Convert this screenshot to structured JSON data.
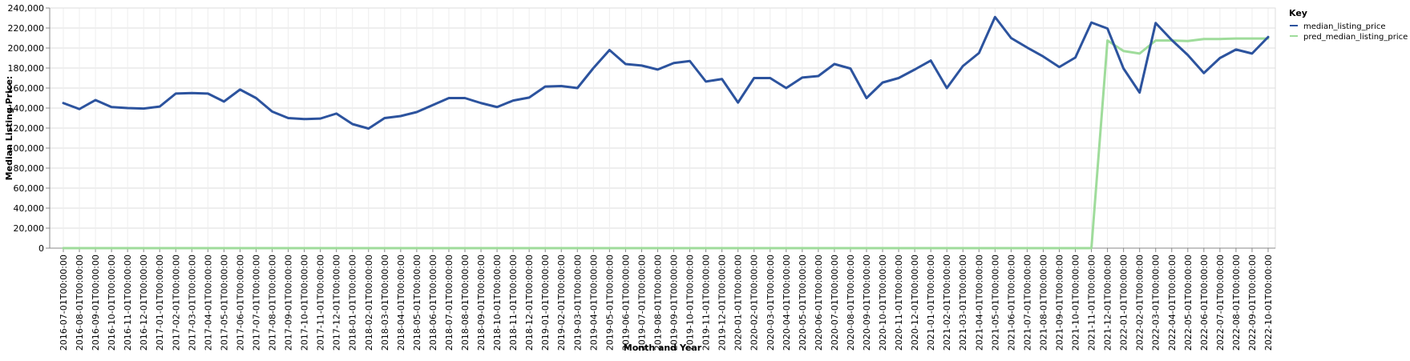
{
  "chart_data": {
    "type": "line",
    "xlabel": "Month and Year",
    "ylabel": "Median Listing Price:",
    "ylim": [
      0,
      240000
    ],
    "y_ticks": [
      0,
      20000,
      40000,
      60000,
      80000,
      100000,
      120000,
      140000,
      160000,
      180000,
      200000,
      220000,
      240000
    ],
    "y_tick_labels": [
      "0",
      "20,000",
      "40,000",
      "60,000",
      "80,000",
      "100,000",
      "120,000",
      "140,000",
      "160,000",
      "180,000",
      "200,000",
      "220,000",
      "240,000"
    ],
    "grid": true,
    "legend": {
      "title": "Key",
      "placement": "top-right"
    },
    "categories": [
      "2016-07-01T00:00:00",
      "2016-08-01T00:00:00",
      "2016-09-01T00:00:00",
      "2016-10-01T00:00:00",
      "2016-11-01T00:00:00",
      "2016-12-01T00:00:00",
      "2017-01-01T00:00:00",
      "2017-02-01T00:00:00",
      "2017-03-01T00:00:00",
      "2017-04-01T00:00:00",
      "2017-05-01T00:00:00",
      "2017-06-01T00:00:00",
      "2017-07-01T00:00:00",
      "2017-08-01T00:00:00",
      "2017-09-01T00:00:00",
      "2017-10-01T00:00:00",
      "2017-11-01T00:00:00",
      "2017-12-01T00:00:00",
      "2018-01-01T00:00:00",
      "2018-02-01T00:00:00",
      "2018-03-01T00:00:00",
      "2018-04-01T00:00:00",
      "2018-05-01T00:00:00",
      "2018-06-01T00:00:00",
      "2018-07-01T00:00:00",
      "2018-08-01T00:00:00",
      "2018-09-01T00:00:00",
      "2018-10-01T00:00:00",
      "2018-11-01T00:00:00",
      "2018-12-01T00:00:00",
      "2019-01-01T00:00:00",
      "2019-02-01T00:00:00",
      "2019-03-01T00:00:00",
      "2019-04-01T00:00:00",
      "2019-05-01T00:00:00",
      "2019-06-01T00:00:00",
      "2019-07-01T00:00:00",
      "2019-08-01T00:00:00",
      "2019-09-01T00:00:00",
      "2019-10-01T00:00:00",
      "2019-11-01T00:00:00",
      "2019-12-01T00:00:00",
      "2020-01-01T00:00:00",
      "2020-02-01T00:00:00",
      "2020-03-01T00:00:00",
      "2020-04-01T00:00:00",
      "2020-05-01T00:00:00",
      "2020-06-01T00:00:00",
      "2020-07-01T00:00:00",
      "2020-08-01T00:00:00",
      "2020-09-01T00:00:00",
      "2020-10-01T00:00:00",
      "2020-11-01T00:00:00",
      "2020-12-01T00:00:00",
      "2021-01-01T00:00:00",
      "2021-02-01T00:00:00",
      "2021-03-01T00:00:00",
      "2021-04-01T00:00:00",
      "2021-05-01T00:00:00",
      "2021-06-01T00:00:00",
      "2021-07-01T00:00:00",
      "2021-08-01T00:00:00",
      "2021-09-01T00:00:00",
      "2021-10-01T00:00:00",
      "2021-11-01T00:00:00",
      "2021-12-01T00:00:00",
      "2022-01-01T00:00:00",
      "2022-02-01T00:00:00",
      "2022-03-01T00:00:00",
      "2022-04-01T00:00:00",
      "2022-05-01T00:00:00",
      "2022-06-01T00:00:00",
      "2022-07-01T00:00:00",
      "2022-08-01T00:00:00",
      "2022-09-01T00:00:00",
      "2022-10-01T00:00:00"
    ],
    "series": [
      {
        "name": "median_listing_price",
        "color": "#2c539e",
        "values": [
          145000,
          139000,
          148000,
          141000,
          140000,
          139500,
          141500,
          154500,
          155000,
          154500,
          146500,
          158500,
          150000,
          136500,
          130000,
          129000,
          129500,
          134500,
          124000,
          119500,
          130000,
          132000,
          136000,
          143000,
          150000,
          150000,
          145000,
          141000,
          147500,
          150500,
          161500,
          162000,
          160000,
          180000,
          198000,
          184000,
          182500,
          178500,
          185000,
          187000,
          166500,
          169000,
          145500,
          170000,
          170000,
          160000,
          170500,
          172000,
          184000,
          179500,
          150000,
          165500,
          170000,
          178500,
          187500,
          160000,
          182000,
          195000,
          231000,
          210000,
          200500,
          191500,
          181000,
          190500,
          225500,
          219500,
          179500,
          155500,
          225000,
          208000,
          193000,
          175000,
          190000,
          198500,
          194500,
          211000
        ]
      },
      {
        "name": "pred_median_listing_price",
        "color": "#9fdc9b",
        "values": [
          0,
          0,
          0,
          0,
          0,
          0,
          0,
          0,
          0,
          0,
          0,
          0,
          0,
          0,
          0,
          0,
          0,
          0,
          0,
          0,
          0,
          0,
          0,
          0,
          0,
          0,
          0,
          0,
          0,
          0,
          0,
          0,
          0,
          0,
          0,
          0,
          0,
          0,
          0,
          0,
          0,
          0,
          0,
          0,
          0,
          0,
          0,
          0,
          0,
          0,
          0,
          0,
          0,
          0,
          0,
          0,
          0,
          0,
          0,
          0,
          0,
          0,
          0,
          0,
          0,
          207500,
          197000,
          194500,
          207500,
          207500,
          207000,
          209000,
          209000,
          209500,
          209500,
          209500
        ]
      }
    ]
  }
}
